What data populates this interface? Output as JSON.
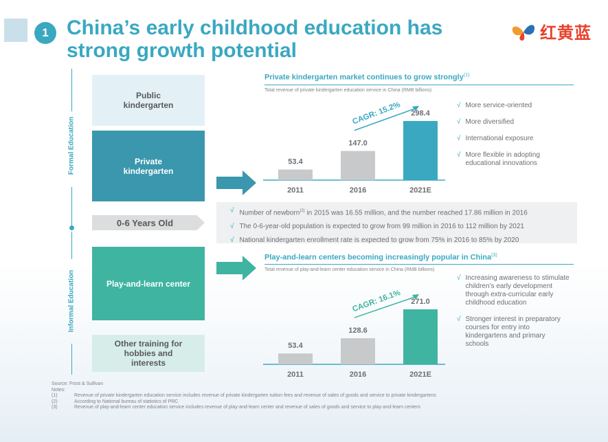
{
  "header": {
    "badge_number": "1",
    "title_line1": "China’s early childhood education has",
    "title_line2": "strong growth potential",
    "logo_text": "红黄蓝",
    "logo_icon": "butterfly-logo-icon"
  },
  "side_labels": {
    "formal": "Formal Education",
    "informal": "Informal Education"
  },
  "boxes": {
    "public_kg": "Public kindergarten",
    "private_kg": "Private kindergarten",
    "age_label": "0-6 Years Old",
    "play_learn": "Play-and-learn center",
    "other_training": "Other training for hobbies and interests"
  },
  "private_panel": {
    "title": "Private kindergarten market continues to grow strongly",
    "title_note": "(1)",
    "subtitle": "Total revenue of private kindergarten education service in China (RMB billions)",
    "bullets": [
      "More service-oriented",
      "More diversified",
      "International exposure",
      "More flexible in adopting educational innovations"
    ]
  },
  "middle": {
    "tick": "√",
    "row1_before": "Number of newborn",
    "row1_note": "(2)",
    "row1_after": " in 2015 was 16.55 million, and the number reached 17.86 million in 2016",
    "row2": "The 0-6-year-old population is expected to grow from 99 million in 2016 to 112 million by 2021",
    "row3": "National kindergarten enrollment rate is expected to grow from 75% in 2016 to 85% by 2020"
  },
  "play_panel": {
    "title": "Play-and-learn centers becoming increasingly popular in China",
    "title_note": "(3)",
    "subtitle": "Total revenue of play-and-learn center education service in China (RMB billions)",
    "bullets": [
      "Increasing awareness to stimulate children’s early development through extra-curricular early childhood education",
      "Stronger interest in preparatory courses for entry into kindergartens and primary schools"
    ]
  },
  "chart_data": [
    {
      "type": "bar",
      "title": "Private kindergarten market continues to grow strongly",
      "subtitle": "Total revenue of private kindergarten education service in China (RMB billions)",
      "categories": [
        "2011",
        "2016",
        "2021E"
      ],
      "values": [
        53.4,
        147.0,
        298.4
      ],
      "value_labels": [
        "53.4",
        "147.0",
        "298.4"
      ],
      "annotation": "CAGR: 15.2%",
      "bar_colors": [
        "#c8c9cb",
        "#c8c9cb",
        "#3aa8c1"
      ],
      "ylim": [
        0,
        298.4
      ]
    },
    {
      "type": "bar",
      "title": "Play-and-learn centers becoming increasingly popular in China",
      "subtitle": "Total revenue of play-and-learn center education service in China (RMB billions)",
      "categories": [
        "2011",
        "2016",
        "2021E"
      ],
      "values": [
        53.4,
        128.6,
        271.0
      ],
      "value_labels": [
        "53.4",
        "128.6",
        "271.0"
      ],
      "annotation": "CAGR: 16.1%",
      "bar_colors": [
        "#c8c9cb",
        "#c8c9cb",
        "#3fb4a1"
      ],
      "ylim": [
        0,
        271.0
      ]
    }
  ],
  "footnotes": {
    "source": "Source: Frost & Sullivan",
    "notes_label": "Notes:",
    "items": [
      {
        "key": "(1)",
        "text": "Revenue of private kindergarten education service includes revenue of private kindergarten tuition fees and revenue of sales of goods and service to private kindergartens"
      },
      {
        "key": "(2)",
        "text": "According to National bureau of statistics of PRC"
      },
      {
        "key": "(3)",
        "text": "Revenue of play-and-learn center education service includes revenue of play-and-learn center and revenue of sales of goods and service to play-and-learn centers"
      }
    ]
  }
}
